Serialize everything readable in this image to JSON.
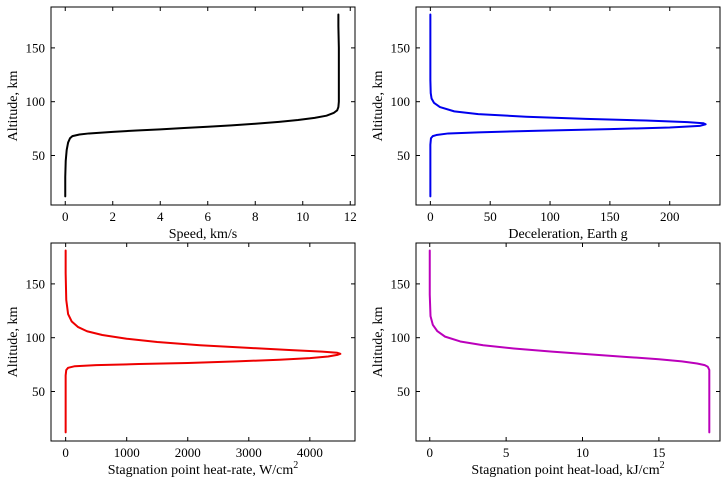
{
  "chart_data": [
    {
      "type": "line",
      "xlabel": "Speed, km/s",
      "xlabel_sup": "",
      "ylabel": "Altitude, km",
      "xlim": [
        -0.6,
        12.2
      ],
      "ylim": [
        4,
        188
      ],
      "xticks": [
        0,
        2,
        4,
        6,
        8,
        10,
        12
      ],
      "yticks": [
        50,
        100,
        150
      ],
      "color": "#000000",
      "series": [
        {
          "x": [
            0.0,
            0.0,
            0.02,
            0.06,
            0.12,
            0.2,
            0.3,
            0.6,
            1.0,
            2.0,
            3.0,
            4.0,
            5.0,
            6.0,
            7.0,
            8.0,
            9.0,
            9.8,
            10.5,
            11.0,
            11.3,
            11.45,
            11.5,
            11.52,
            11.52,
            11.52,
            11.5,
            11.5
          ],
          "y": [
            12,
            30,
            45,
            55,
            62,
            66,
            68,
            69.5,
            70.5,
            72,
            73.2,
            74.3,
            75.5,
            76.7,
            78,
            79.5,
            81.3,
            83,
            85,
            87,
            89.5,
            92,
            95,
            100,
            120,
            150,
            170,
            181
          ]
        }
      ]
    },
    {
      "type": "line",
      "xlabel": "Deceleration, Earth g",
      "xlabel_sup": "",
      "ylabel": "Altitude, km",
      "xlim": [
        -12,
        242
      ],
      "ylim": [
        4,
        188
      ],
      "xticks": [
        0,
        50,
        100,
        150,
        200
      ],
      "yticks": [
        50,
        100,
        150
      ],
      "color": "#0000ee",
      "series": [
        {
          "x": [
            0,
            0,
            0,
            0.5,
            2,
            5,
            15,
            40,
            90,
            150,
            200,
            225,
            230,
            228,
            215,
            180,
            130,
            80,
            40,
            20,
            8,
            3,
            1,
            0.3,
            0,
            0,
            0
          ],
          "y": [
            12,
            40,
            60,
            66,
            68,
            69,
            70.5,
            71.5,
            73,
            74.5,
            76,
            77.5,
            79,
            80,
            81,
            82.5,
            84,
            86,
            88.5,
            91,
            95,
            99,
            103,
            108,
            120,
            150,
            181
          ]
        }
      ]
    },
    {
      "type": "line",
      "xlabel": "Stagnation point heat-rate, W/cm",
      "xlabel_sup": "2",
      "ylabel": "Altitude, km",
      "xlim": [
        -240,
        4740
      ],
      "ylim": [
        4,
        188
      ],
      "xticks": [
        0,
        1000,
        2000,
        3000,
        4000
      ],
      "yticks": [
        50,
        100,
        150
      ],
      "color": "#ee0000",
      "series": [
        {
          "x": [
            0,
            0,
            0,
            10,
            40,
            150,
            500,
            1200,
            2000,
            2800,
            3500,
            4000,
            4300,
            4450,
            4500,
            4450,
            4200,
            3700,
            3000,
            2200,
            1500,
            1000,
            600,
            350,
            200,
            100,
            40,
            10,
            0,
            0
          ],
          "y": [
            12,
            40,
            65,
            70,
            72,
            73.5,
            74.5,
            75.5,
            76.5,
            78,
            79.5,
            81,
            82.5,
            84,
            85,
            86,
            87,
            88.5,
            90.5,
            93,
            96,
            99,
            102.5,
            106,
            110,
            115,
            122,
            135,
            160,
            181
          ]
        }
      ]
    },
    {
      "type": "line",
      "xlabel": "Stagnation point heat-load, kJ/cm",
      "xlabel_sup": "2",
      "ylabel": "Altitude, km",
      "xlim": [
        -0.9,
        19.0
      ],
      "ylim": [
        4,
        188
      ],
      "xticks": [
        0,
        5,
        10,
        15
      ],
      "yticks": [
        50,
        100,
        150
      ],
      "color": "#bb00bb",
      "series": [
        {
          "x": [
            0,
            0,
            0.05,
            0.2,
            0.5,
            1.0,
            2.0,
            3.5,
            5.5,
            8.0,
            10.5,
            13.0,
            15.0,
            16.5,
            17.5,
            18.0,
            18.2,
            18.3,
            18.3,
            18.3
          ],
          "y": [
            181,
            140,
            120,
            112,
            106,
            101,
            96.5,
            93,
            90,
            87,
            84.5,
            82,
            80,
            78,
            76,
            74.5,
            73,
            70,
            40,
            12
          ]
        }
      ]
    }
  ]
}
